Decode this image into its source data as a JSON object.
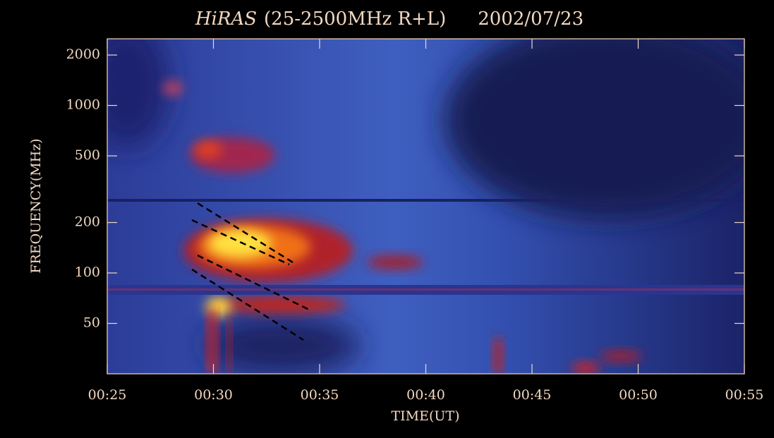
{
  "chart_data": {
    "type": "spectrogram",
    "title_name": "HiRAS",
    "title": "(25-2500MHz R+L)",
    "date": "2002/07/23",
    "x_label": "TIME(UT)",
    "y_label": "FREQUENCY(MHz)",
    "xlim": [
      25,
      55
    ],
    "xticks": [
      {
        "value": 25,
        "label": "00:25"
      },
      {
        "value": 30,
        "label": "00:30"
      },
      {
        "value": 35,
        "label": "00:35"
      },
      {
        "value": 40,
        "label": "00:40"
      },
      {
        "value": 45,
        "label": "00:45"
      },
      {
        "value": 50,
        "label": "00:50"
      },
      {
        "value": 55,
        "label": "00:55"
      }
    ],
    "ylim": [
      25,
      2500
    ],
    "y_log": true,
    "yticks": [
      50,
      100,
      200,
      500,
      1000,
      2000
    ],
    "axis_color": "#f2d8c2"
  }
}
